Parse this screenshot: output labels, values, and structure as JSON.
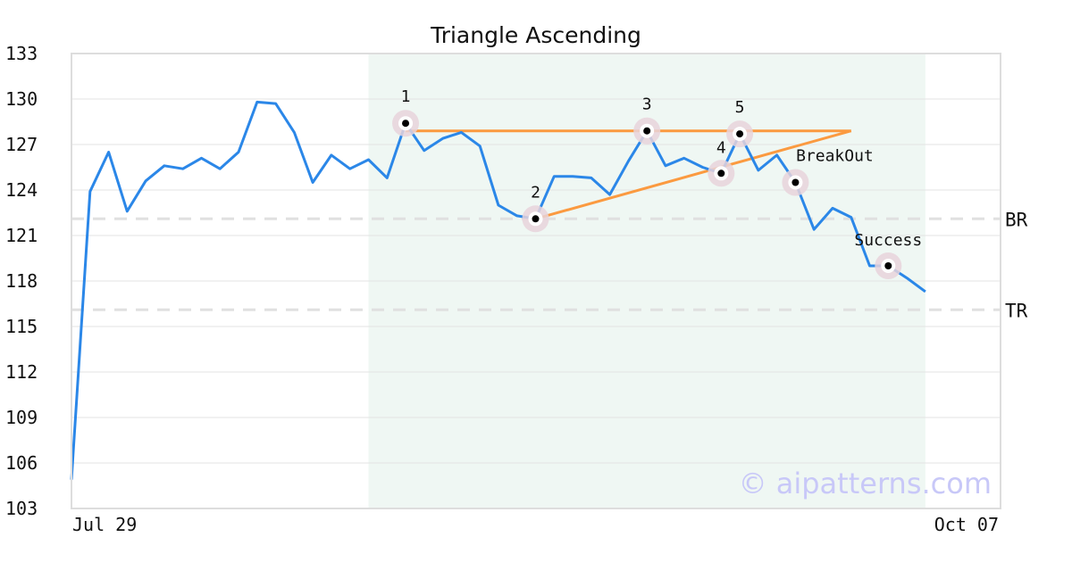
{
  "chart_data": {
    "type": "line",
    "title": "Triangle Ascending",
    "x_tick_labels": [
      "Jul 29",
      "Oct 07"
    ],
    "ylim": [
      103,
      133
    ],
    "y_ticks": [
      103,
      106,
      109,
      112,
      115,
      118,
      121,
      124,
      127,
      130,
      133
    ],
    "grid": true,
    "series": [
      {
        "color": "#2b87e8",
        "values": [
          104.9,
          123.9,
          126.5,
          122.6,
          124.6,
          125.6,
          125.4,
          126.1,
          125.4,
          126.5,
          129.8,
          129.7,
          127.8,
          124.5,
          126.3,
          125.4,
          126.0,
          124.8,
          128.4,
          126.6,
          127.4,
          127.8,
          126.9,
          123.0,
          122.3,
          122.1,
          124.9,
          124.9,
          124.8,
          123.7,
          125.9,
          127.9,
          125.6,
          126.1,
          125.5,
          125.1,
          127.7,
          125.3,
          126.3,
          124.5,
          121.4,
          122.8,
          122.2,
          119.0,
          119.0,
          118.2,
          117.3
        ]
      }
    ],
    "shaded_region": {
      "from_index": 16,
      "to_index": 46,
      "color": "#eff7f3"
    },
    "trendlines": [
      {
        "from": [
          18,
          127.9
        ],
        "to": [
          42,
          127.9
        ],
        "color": "#fb9a40"
      },
      {
        "from": [
          25,
          122.1
        ],
        "to": [
          42,
          127.9
        ],
        "color": "#fb9a40"
      }
    ],
    "horizontal_lines": [
      {
        "label": "BR",
        "value": 122.1
      },
      {
        "label": "TR",
        "value": 116.1
      }
    ],
    "markers": [
      {
        "label": "1",
        "index": 18
      },
      {
        "label": "2",
        "index": 25
      },
      {
        "label": "3",
        "index": 31
      },
      {
        "label": "4",
        "index": 35
      },
      {
        "label": "5",
        "index": 36
      },
      {
        "label": "BreakOut",
        "index": 39
      },
      {
        "label": "Success",
        "index": 44
      }
    ]
  },
  "watermark": "© aipatterns.com"
}
